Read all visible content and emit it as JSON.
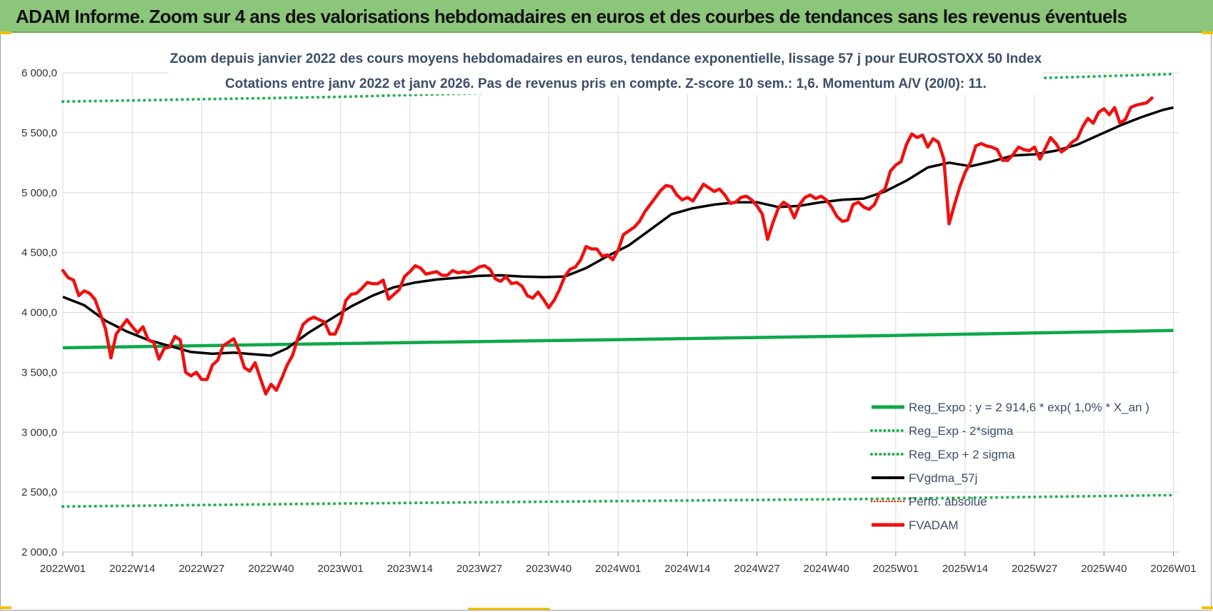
{
  "banner": {
    "title": "ADAM Informe. Zoom sur 4 ans des valorisations hebdomadaires en euros et des courbes de tendances sans les revenus éventuels"
  },
  "colors": {
    "banner": "#8cc67a",
    "reg_expo": "#0ea84a",
    "sigma": "#1fb14d",
    "fvgdma": "#000000",
    "fvadam": "#ee1111",
    "perf": "#ee1111",
    "title_text": "#3c4e68"
  },
  "chart_data": {
    "type": "line",
    "title": [
      "Zoom depuis janvier 2022 des cours moyens hebdomadaires en euros, tendance exponentielle, lissage 57 j pour EUROSTOXX 50 Index",
      "Cotations entre janv 2022 et janv 2026. Pas de revenus pris en compte. Z-score 10 sem.: 1,6. Momentum A/V (20/0): 11."
    ],
    "ylim": [
      2000,
      6000
    ],
    "yticks": [
      "6 000,0",
      "5 500,0",
      "5 000,0",
      "4 500,0",
      "4 000,0",
      "3 500,0",
      "3 000,0",
      "2 500,0",
      "2 000,0"
    ],
    "x_range": [
      0,
      209
    ],
    "xticks": [
      {
        "label": "2022W01",
        "x": 0
      },
      {
        "label": "2022W14",
        "x": 13
      },
      {
        "label": "2022W27",
        "x": 26
      },
      {
        "label": "2022W40",
        "x": 39
      },
      {
        "label": "2023W01",
        "x": 52
      },
      {
        "label": "2023W14",
        "x": 65
      },
      {
        "label": "2023W27",
        "x": 78
      },
      {
        "label": "2023W40",
        "x": 91
      },
      {
        "label": "2024W01",
        "x": 104
      },
      {
        "label": "2024W14",
        "x": 117
      },
      {
        "label": "2024W27",
        "x": 130
      },
      {
        "label": "2024W40",
        "x": 143
      },
      {
        "label": "2025W01",
        "x": 156
      },
      {
        "label": "2025W14",
        "x": 169
      },
      {
        "label": "2025W27",
        "x": 182
      },
      {
        "label": "2025W40",
        "x": 195
      },
      {
        "label": "2026W01",
        "x": 208
      }
    ],
    "legend": [
      {
        "key": "reg_expo",
        "label": "Reg_Expo : y = 2 914,6 * exp( 1,0% *  X_an )"
      },
      {
        "key": "minus",
        "label": "Reg_Exp - 2*sigma"
      },
      {
        "key": "plus",
        "label": "Reg_Exp + 2 sigma"
      },
      {
        "key": "fvgdma",
        "label": "FVgdma_57j"
      },
      {
        "key": "perf",
        "label": "Perfo. absolue"
      },
      {
        "key": "fvadam",
        "label": "FVADAM"
      }
    ],
    "series": [
      {
        "name": "Reg_Expo",
        "style": "solid-green",
        "points": [
          [
            0,
            3705
          ],
          [
            52,
            3740
          ],
          [
            104,
            3773
          ],
          [
            156,
            3808
          ],
          [
            208,
            3850
          ]
        ]
      },
      {
        "name": "Reg_Exp - 2*sigma",
        "style": "dotted-green",
        "points": [
          [
            0,
            2380
          ],
          [
            52,
            2405
          ],
          [
            104,
            2425
          ],
          [
            156,
            2445
          ],
          [
            208,
            2475
          ]
        ]
      },
      {
        "name": "Reg_Exp + 2 sigma",
        "style": "dotted-green",
        "points": [
          [
            0,
            5760
          ],
          [
            52,
            5800
          ],
          [
            104,
            5860
          ],
          [
            156,
            5920
          ],
          [
            208,
            5990
          ]
        ]
      },
      {
        "name": "FVgdma_57j",
        "style": "solid-black",
        "points": [
          [
            0,
            4130
          ],
          [
            4,
            4060
          ],
          [
            8,
            3930
          ],
          [
            12,
            3840
          ],
          [
            16,
            3770
          ],
          [
            20,
            3720
          ],
          [
            24,
            3670
          ],
          [
            28,
            3655
          ],
          [
            32,
            3665
          ],
          [
            36,
            3650
          ],
          [
            39,
            3640
          ],
          [
            42,
            3700
          ],
          [
            46,
            3830
          ],
          [
            50,
            3940
          ],
          [
            54,
            4050
          ],
          [
            58,
            4140
          ],
          [
            62,
            4210
          ],
          [
            66,
            4250
          ],
          [
            70,
            4275
          ],
          [
            74,
            4290
          ],
          [
            78,
            4305
          ],
          [
            82,
            4310
          ],
          [
            86,
            4300
          ],
          [
            90,
            4295
          ],
          [
            94,
            4300
          ],
          [
            98,
            4370
          ],
          [
            102,
            4470
          ],
          [
            106,
            4560
          ],
          [
            110,
            4690
          ],
          [
            114,
            4820
          ],
          [
            118,
            4870
          ],
          [
            122,
            4900
          ],
          [
            126,
            4920
          ],
          [
            130,
            4920
          ],
          [
            134,
            4880
          ],
          [
            138,
            4890
          ],
          [
            142,
            4920
          ],
          [
            146,
            4940
          ],
          [
            150,
            4950
          ],
          [
            154,
            5010
          ],
          [
            158,
            5100
          ],
          [
            162,
            5210
          ],
          [
            166,
            5250
          ],
          [
            170,
            5220
          ],
          [
            174,
            5260
          ],
          [
            178,
            5310
          ],
          [
            182,
            5320
          ],
          [
            186,
            5350
          ],
          [
            190,
            5400
          ],
          [
            194,
            5480
          ],
          [
            198,
            5560
          ],
          [
            202,
            5630
          ],
          [
            206,
            5690
          ],
          [
            208,
            5710
          ]
        ]
      },
      {
        "name": "FVADAM",
        "style": "solid-red-thick",
        "points": [
          [
            0,
            4350
          ],
          [
            1,
            4290
          ],
          [
            2,
            4270
          ],
          [
            3,
            4140
          ],
          [
            4,
            4180
          ],
          [
            5,
            4160
          ],
          [
            6,
            4110
          ],
          [
            7,
            3990
          ],
          [
            8,
            3860
          ],
          [
            9,
            3620
          ],
          [
            10,
            3820
          ],
          [
            11,
            3880
          ],
          [
            12,
            3940
          ],
          [
            13,
            3880
          ],
          [
            14,
            3830
          ],
          [
            15,
            3880
          ],
          [
            16,
            3770
          ],
          [
            17,
            3750
          ],
          [
            18,
            3610
          ],
          [
            19,
            3700
          ],
          [
            20,
            3710
          ],
          [
            21,
            3800
          ],
          [
            22,
            3770
          ],
          [
            23,
            3500
          ],
          [
            24,
            3470
          ],
          [
            25,
            3500
          ],
          [
            26,
            3440
          ],
          [
            27,
            3440
          ],
          [
            28,
            3560
          ],
          [
            29,
            3600
          ],
          [
            30,
            3720
          ],
          [
            31,
            3750
          ],
          [
            32,
            3780
          ],
          [
            33,
            3680
          ],
          [
            34,
            3540
          ],
          [
            35,
            3510
          ],
          [
            36,
            3580
          ],
          [
            37,
            3450
          ],
          [
            38,
            3320
          ],
          [
            39,
            3400
          ],
          [
            40,
            3350
          ],
          [
            41,
            3450
          ],
          [
            42,
            3560
          ],
          [
            43,
            3640
          ],
          [
            44,
            3780
          ],
          [
            45,
            3900
          ],
          [
            46,
            3940
          ],
          [
            47,
            3960
          ],
          [
            48,
            3940
          ],
          [
            49,
            3920
          ],
          [
            50,
            3820
          ],
          [
            51,
            3820
          ],
          [
            52,
            3920
          ],
          [
            53,
            4100
          ],
          [
            54,
            4150
          ],
          [
            55,
            4160
          ],
          [
            56,
            4200
          ],
          [
            57,
            4250
          ],
          [
            58,
            4240
          ],
          [
            59,
            4240
          ],
          [
            60,
            4270
          ],
          [
            61,
            4110
          ],
          [
            62,
            4150
          ],
          [
            63,
            4190
          ],
          [
            64,
            4300
          ],
          [
            65,
            4340
          ],
          [
            66,
            4390
          ],
          [
            67,
            4370
          ],
          [
            68,
            4320
          ],
          [
            69,
            4330
          ],
          [
            70,
            4340
          ],
          [
            71,
            4310
          ],
          [
            72,
            4310
          ],
          [
            73,
            4350
          ],
          [
            74,
            4330
          ],
          [
            75,
            4340
          ],
          [
            76,
            4330
          ],
          [
            77,
            4350
          ],
          [
            78,
            4380
          ],
          [
            79,
            4390
          ],
          [
            80,
            4360
          ],
          [
            81,
            4280
          ],
          [
            82,
            4260
          ],
          [
            83,
            4300
          ],
          [
            84,
            4240
          ],
          [
            85,
            4250
          ],
          [
            86,
            4220
          ],
          [
            87,
            4140
          ],
          [
            88,
            4120
          ],
          [
            89,
            4170
          ],
          [
            90,
            4110
          ],
          [
            91,
            4040
          ],
          [
            92,
            4100
          ],
          [
            93,
            4190
          ],
          [
            94,
            4300
          ],
          [
            95,
            4360
          ],
          [
            96,
            4380
          ],
          [
            97,
            4440
          ],
          [
            98,
            4550
          ],
          [
            99,
            4530
          ],
          [
            100,
            4530
          ],
          [
            101,
            4470
          ],
          [
            102,
            4480
          ],
          [
            103,
            4440
          ],
          [
            104,
            4520
          ],
          [
            105,
            4650
          ],
          [
            106,
            4680
          ],
          [
            107,
            4710
          ],
          [
            108,
            4760
          ],
          [
            109,
            4840
          ],
          [
            110,
            4900
          ],
          [
            111,
            4960
          ],
          [
            112,
            5020
          ],
          [
            113,
            5060
          ],
          [
            114,
            5050
          ],
          [
            115,
            4980
          ],
          [
            116,
            4940
          ],
          [
            117,
            4960
          ],
          [
            118,
            4930
          ],
          [
            119,
            5000
          ],
          [
            120,
            5070
          ],
          [
            121,
            5040
          ],
          [
            122,
            5010
          ],
          [
            123,
            5030
          ],
          [
            124,
            4980
          ],
          [
            125,
            4910
          ],
          [
            126,
            4920
          ],
          [
            127,
            4960
          ],
          [
            128,
            4970
          ],
          [
            129,
            4940
          ],
          [
            130,
            4890
          ],
          [
            131,
            4820
          ],
          [
            132,
            4610
          ],
          [
            133,
            4750
          ],
          [
            134,
            4870
          ],
          [
            135,
            4920
          ],
          [
            136,
            4890
          ],
          [
            137,
            4790
          ],
          [
            138,
            4900
          ],
          [
            139,
            4960
          ],
          [
            140,
            4980
          ],
          [
            141,
            4950
          ],
          [
            142,
            4970
          ],
          [
            143,
            4940
          ],
          [
            144,
            4880
          ],
          [
            145,
            4800
          ],
          [
            146,
            4760
          ],
          [
            147,
            4770
          ],
          [
            148,
            4900
          ],
          [
            149,
            4920
          ],
          [
            150,
            4880
          ],
          [
            151,
            4860
          ],
          [
            152,
            4900
          ],
          [
            153,
            5000
          ],
          [
            154,
            5030
          ],
          [
            155,
            5180
          ],
          [
            156,
            5230
          ],
          [
            157,
            5260
          ],
          [
            158,
            5400
          ],
          [
            159,
            5490
          ],
          [
            160,
            5460
          ],
          [
            161,
            5480
          ],
          [
            162,
            5380
          ],
          [
            163,
            5450
          ],
          [
            164,
            5420
          ],
          [
            165,
            5280
          ],
          [
            166,
            4740
          ],
          [
            167,
            4900
          ],
          [
            168,
            5050
          ],
          [
            169,
            5170
          ],
          [
            170,
            5250
          ],
          [
            171,
            5390
          ],
          [
            172,
            5410
          ],
          [
            173,
            5390
          ],
          [
            174,
            5380
          ],
          [
            175,
            5360
          ],
          [
            176,
            5270
          ],
          [
            177,
            5270
          ],
          [
            178,
            5320
          ],
          [
            179,
            5380
          ],
          [
            180,
            5360
          ],
          [
            181,
            5350
          ],
          [
            182,
            5380
          ],
          [
            183,
            5280
          ],
          [
            184,
            5370
          ],
          [
            185,
            5460
          ],
          [
            186,
            5410
          ],
          [
            187,
            5340
          ],
          [
            188,
            5370
          ],
          [
            189,
            5420
          ],
          [
            190,
            5450
          ],
          [
            191,
            5550
          ],
          [
            192,
            5620
          ],
          [
            193,
            5580
          ],
          [
            194,
            5670
          ],
          [
            195,
            5700
          ],
          [
            196,
            5650
          ],
          [
            197,
            5710
          ],
          [
            198,
            5580
          ],
          [
            199,
            5610
          ],
          [
            200,
            5710
          ],
          [
            201,
            5730
          ],
          [
            202,
            5740
          ],
          [
            203,
            5750
          ],
          [
            204,
            5790
          ]
        ]
      }
    ]
  }
}
